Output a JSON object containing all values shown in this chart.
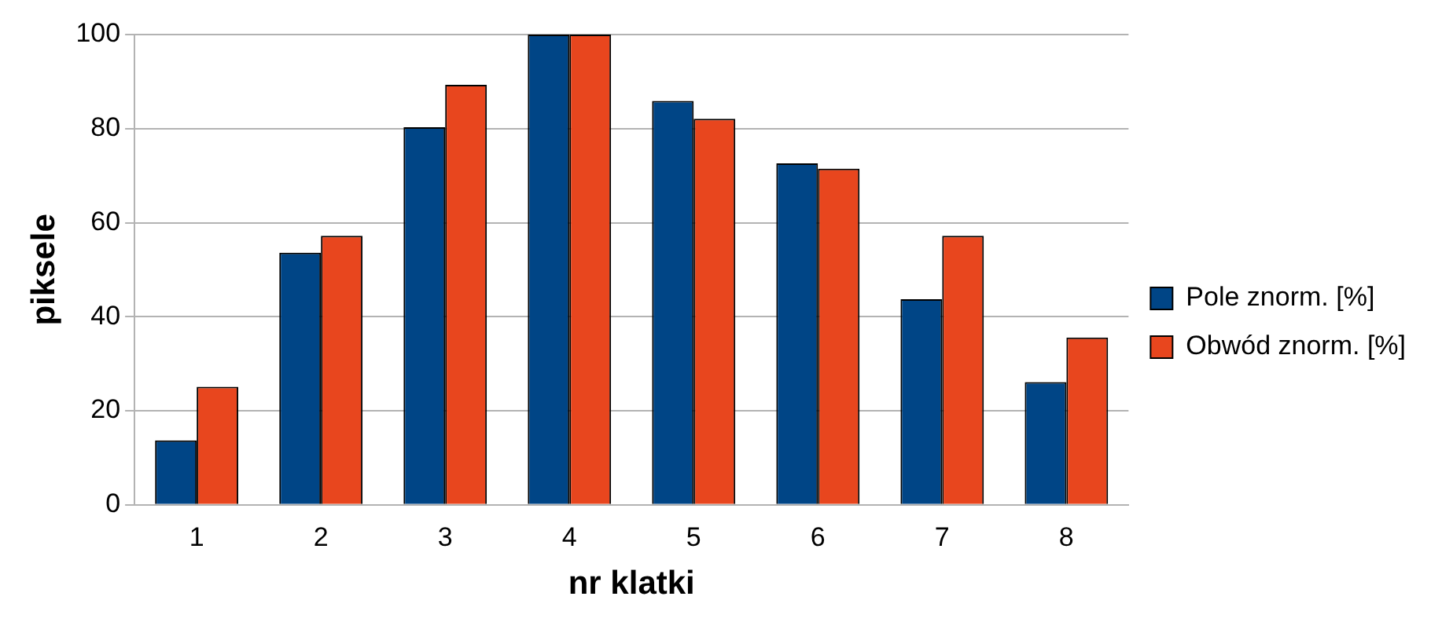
{
  "chart_data": {
    "type": "bar",
    "xlabel": "nr klatki",
    "ylabel": "piksele",
    "categories": [
      "1",
      "2",
      "3",
      "4",
      "5",
      "6",
      "7",
      "8"
    ],
    "series": [
      {
        "name": "Pole znorm. [%]",
        "color": "#004586",
        "values": [
          13.7,
          53.6,
          80.3,
          100,
          85.9,
          72.6,
          43.7,
          26.1
        ]
      },
      {
        "name": "Obwód znorm. [%]",
        "color": "#e8461e",
        "values": [
          25.1,
          57.2,
          89.3,
          100,
          82.1,
          71.5,
          57.2,
          35.6
        ]
      }
    ],
    "ylim": [
      0,
      100
    ],
    "yticks": [
      0,
      20,
      40,
      60,
      80,
      100
    ],
    "grid": "y",
    "legend": "right"
  }
}
